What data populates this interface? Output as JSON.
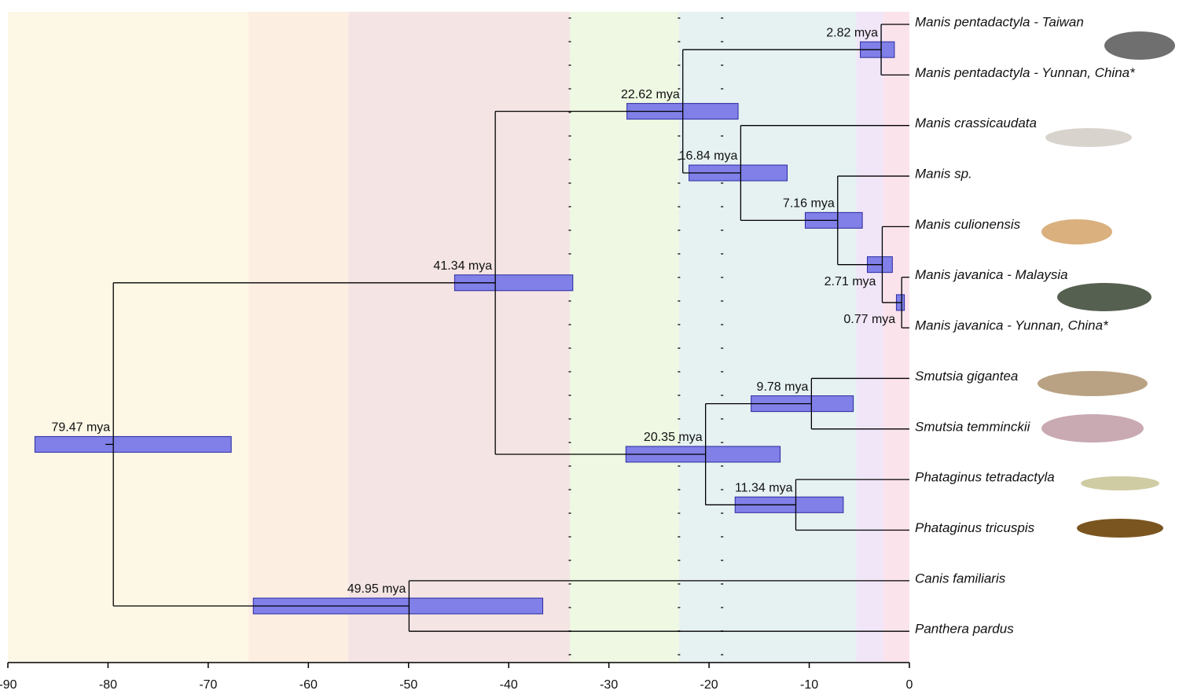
{
  "chart_data": {
    "type": "tree",
    "xlim": [
      -90,
      0
    ],
    "xticks": [
      -90,
      -80,
      -70,
      -60,
      -50,
      -40,
      -30,
      -20,
      -10,
      0
    ],
    "bands": [
      {
        "start": -90,
        "end": -66,
        "color": "#fdf8e6"
      },
      {
        "start": -66,
        "end": -56,
        "color": "#fdeee2"
      },
      {
        "start": -56,
        "end": -33.9,
        "color": "#f4e4e4"
      },
      {
        "start": -33.9,
        "end": -23,
        "color": "#eef8e2"
      },
      {
        "start": -23,
        "end": -5.3,
        "color": "#e6f1f1"
      },
      {
        "start": -5.3,
        "end": -2.6,
        "color": "#f1e6f8"
      },
      {
        "start": -2.6,
        "end": 0,
        "color": "#fbe3ec"
      }
    ],
    "dotted_lines": [
      -33.9,
      -23,
      -18.7
    ],
    "bar_color": "#8080e8",
    "tree": {
      "age": 79.47,
      "label": "79.47 mya",
      "hpd": [
        87.3,
        67.7
      ],
      "children": [
        {
          "age": 41.34,
          "label": "41.34 mya",
          "hpd": [
            45.4,
            33.6
          ],
          "children": [
            {
              "age": 22.62,
              "label": "22.62 mya",
              "hpd": [
                28.2,
                17.1
              ],
              "children": [
                {
                  "age": 2.82,
                  "label": "2.82 mya",
                  "hpd": [
                    4.9,
                    1.5
                  ],
                  "children": [
                    {
                      "name": "Manis pentadactyla - Taiwan"
                    },
                    {
                      "name": "Manis pentadactyla - Yunnan, China*"
                    }
                  ]
                },
                {
                  "age": 16.84,
                  "label": "16.84 mya",
                  "hpd": [
                    22.0,
                    12.2
                  ],
                  "children": [
                    {
                      "name": "Manis crassicaudata"
                    },
                    {
                      "age": 7.16,
                      "label": "7.16 mya",
                      "hpd": [
                        10.4,
                        4.7
                      ],
                      "children": [
                        {
                          "name": "Manis sp."
                        },
                        {
                          "age": 2.71,
                          "label": "2.71 mya",
                          "hpd": [
                            4.2,
                            1.7
                          ],
                          "label_position": "below",
                          "children": [
                            {
                              "name": "Manis culionensis"
                            },
                            {
                              "age": 0.77,
                              "label": "0.77 mya",
                              "hpd": [
                                1.3,
                                0.5
                              ],
                              "label_position": "below",
                              "children": [
                                {
                                  "name": "Manis javanica - Malaysia"
                                },
                                {
                                  "name": "Manis javanica - Yunnan, China*"
                                }
                              ]
                            }
                          ]
                        }
                      ]
                    }
                  ]
                }
              ]
            },
            {
              "age": 20.35,
              "label": "20.35 mya",
              "hpd": [
                28.3,
                12.9
              ],
              "children": [
                {
                  "age": 9.78,
                  "label": "9.78 mya",
                  "hpd": [
                    15.8,
                    5.6
                  ],
                  "children": [
                    {
                      "name": "Smutsia gigantea"
                    },
                    {
                      "name": "Smutsia temminckii"
                    }
                  ]
                },
                {
                  "age": 11.34,
                  "label": "11.34 mya",
                  "hpd": [
                    17.4,
                    6.6
                  ],
                  "children": [
                    {
                      "name": "Phataginus tetradactyla"
                    },
                    {
                      "name": "Phataginus tricuspis"
                    }
                  ]
                }
              ]
            }
          ]
        },
        {
          "age": 49.95,
          "label": "49.95 mya",
          "hpd": [
            65.5,
            36.6
          ],
          "children": [
            {
              "name": "Canis familiaris"
            },
            {
              "name": "Panthera pardus"
            }
          ]
        }
      ]
    }
  }
}
